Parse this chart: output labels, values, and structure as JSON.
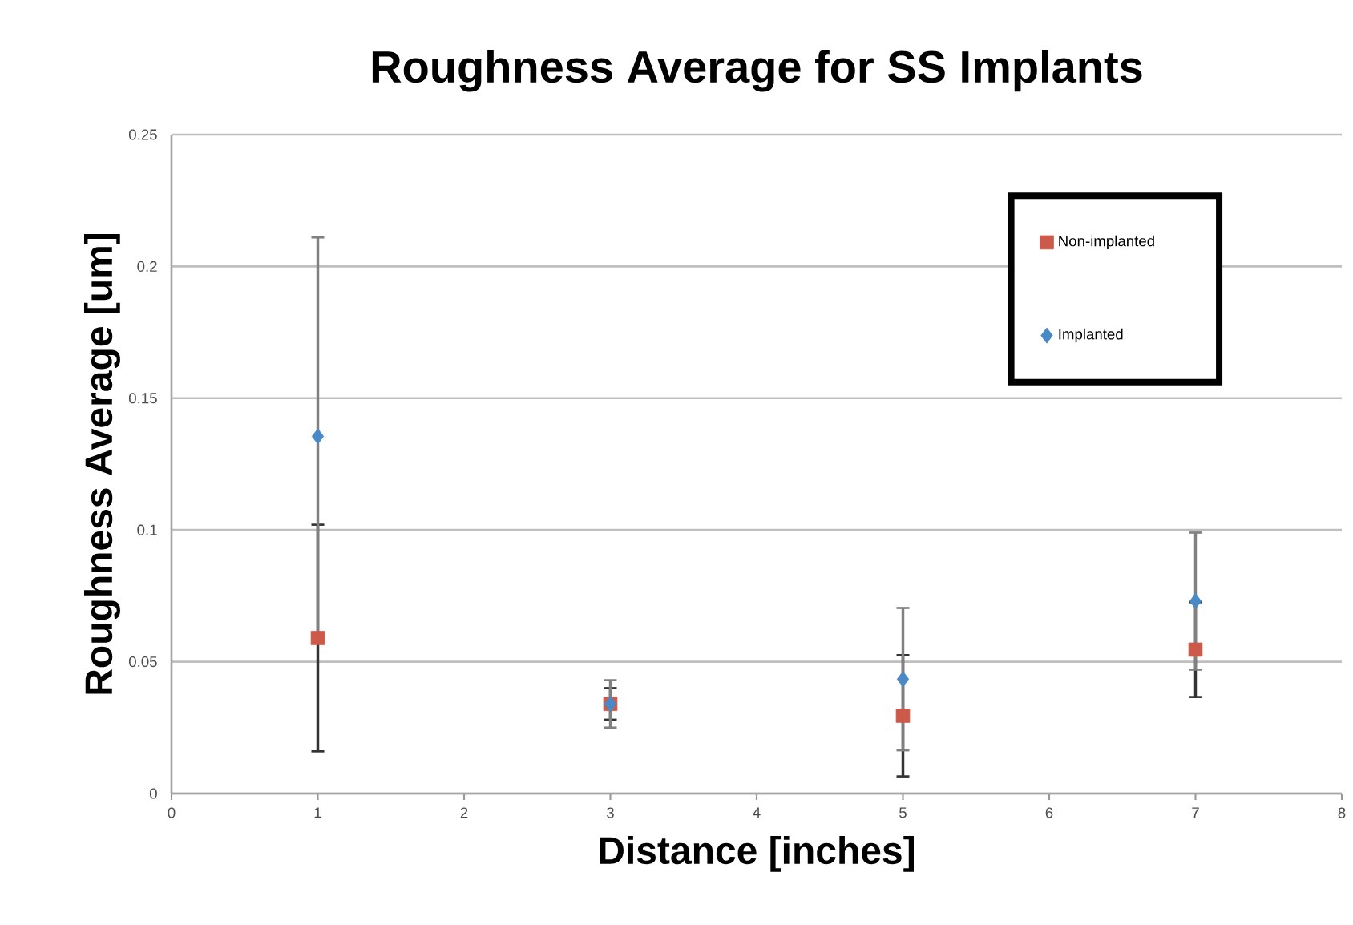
{
  "chart_data": {
    "type": "scatter",
    "title": "Roughness Average for SS Implants",
    "xlabel": "Distance [inches]",
    "ylabel": "Roughness Average [um]",
    "x": [
      1,
      3,
      5,
      7
    ],
    "series": [
      {
        "name": "Non-implanted",
        "color": "#cc5a4b",
        "marker": "square",
        "values": [
          0.059,
          0.034,
          0.0295,
          0.0546
        ],
        "errors": [
          0.043,
          0.006,
          0.023,
          0.018
        ]
      },
      {
        "name": "Implanted",
        "color": "#4a89c8",
        "marker": "diamond",
        "values": [
          0.1355,
          0.034,
          0.0434,
          0.073
        ],
        "errors": [
          0.0755,
          0.009,
          0.027,
          0.026
        ]
      }
    ],
    "xlim": [
      0,
      8
    ],
    "xticks": [
      0,
      1,
      2,
      3,
      4,
      5,
      6,
      7,
      8
    ],
    "ylim": [
      0,
      0.25
    ],
    "yticks": [
      0,
      0.05,
      0.1,
      0.15,
      0.2,
      0.25
    ],
    "grid": "y",
    "legend": "top right"
  }
}
